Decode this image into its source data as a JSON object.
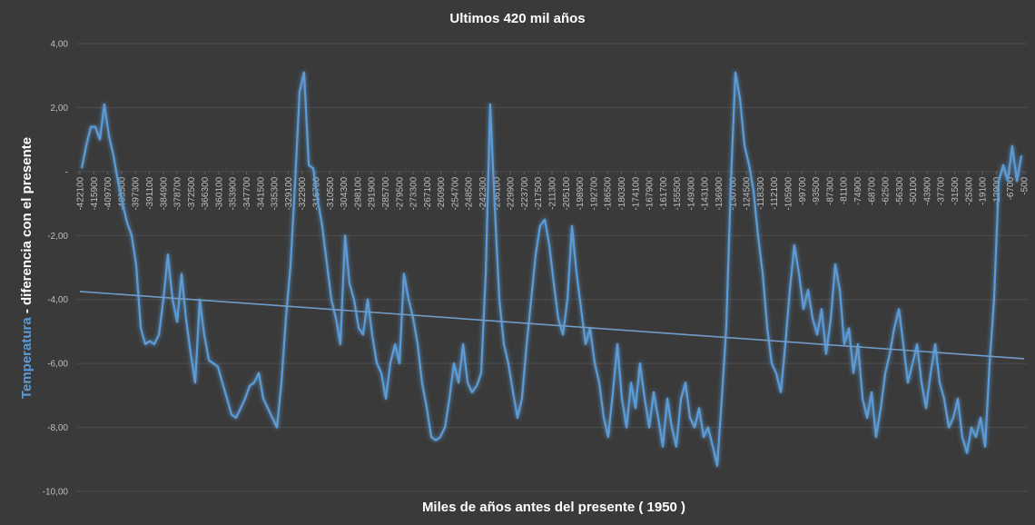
{
  "chart_data": {
    "type": "line",
    "title": "Ultimos 420 mil años",
    "x_label": "Miles de años antes del presente ( 1950 )",
    "y_label_highlight": "Temperatura",
    "y_label_rest": " - diferencia con el presente",
    "color": "#5b9bd5",
    "x": [
      -421300,
      -419300,
      -417200,
      -415200,
      -413200,
      -411200,
      -409100,
      -407100,
      -405100,
      -403000,
      -401000,
      -399000,
      -397000,
      -394900,
      -392900,
      -390900,
      -388900,
      -386800,
      -384800,
      -382800,
      -380700,
      -378700,
      -376700,
      -374700,
      -372600,
      -370600,
      -368600,
      -366600,
      -364500,
      -362500,
      -360500,
      -358500,
      -356400,
      -354400,
      -352400,
      -350300,
      -348300,
      -346300,
      -344300,
      -342200,
      -340200,
      -338200,
      -336200,
      -334100,
      -332100,
      -330100,
      -328000,
      -326000,
      -324000,
      -322000,
      -319900,
      -317900,
      -315900,
      -313900,
      -311800,
      -309800,
      -307800,
      -305800,
      -303700,
      -301700,
      -299700,
      -297600,
      -295600,
      -293600,
      -291600,
      -289500,
      -287500,
      -285500,
      -283500,
      -281400,
      -279400,
      -277400,
      -275300,
      -273300,
      -271300,
      -269300,
      -267200,
      -265200,
      -263200,
      -261200,
      -259100,
      -257100,
      -255100,
      -253000,
      -251000,
      -249000,
      -247000,
      -244900,
      -242900,
      -240900,
      -238900,
      -236800,
      -234800,
      -232800,
      -230800,
      -228700,
      -226700,
      -224700,
      -222600,
      -220600,
      -218600,
      -216600,
      -214500,
      -212500,
      -210500,
      -208500,
      -206400,
      -204400,
      -202400,
      -200300,
      -198300,
      -196300,
      -194300,
      -192200,
      -190200,
      -188200,
      -186200,
      -184100,
      -182100,
      -180100,
      -178000,
      -176000,
      -174000,
      -172000,
      -169900,
      -167900,
      -165900,
      -163900,
      -161800,
      -159800,
      -157800,
      -155800,
      -153700,
      -151700,
      -149700,
      -147600,
      -145600,
      -143600,
      -141600,
      -139500,
      -137500,
      -135500,
      -133500,
      -131400,
      -129400,
      -127400,
      -125300,
      -123300,
      -121300,
      -119300,
      -117200,
      -115200,
      -113200,
      -111200,
      -109100,
      -107100,
      -105100,
      -103100,
      -101000,
      -99000,
      -97000,
      -94900,
      -92900,
      -90900,
      -88900,
      -86800,
      -84800,
      -82800,
      -80800,
      -78700,
      -76700,
      -74700,
      -72600,
      -70600,
      -68600,
      -66600,
      -64500,
      -62500,
      -60500,
      -58500,
      -56400,
      -54400,
      -52400,
      -50300,
      -48300,
      -46300,
      -44300,
      -42200,
      -40200,
      -38200,
      -36200,
      -34100,
      -32100,
      -30100,
      -28100,
      -26000,
      -24000,
      -22000,
      -19900,
      -17900,
      -15900,
      -13900,
      -11800,
      -9800,
      -7800,
      -5800,
      -3700,
      -1700
    ],
    "values": [
      0.1,
      0.8,
      1.4,
      1.4,
      1.0,
      2.1,
      1.1,
      0.5,
      -0.3,
      -1.0,
      -1.6,
      -2.0,
      -2.9,
      -4.9,
      -5.4,
      -5.3,
      -5.4,
      -5.1,
      -4.0,
      -2.6,
      -4.0,
      -4.7,
      -3.2,
      -4.6,
      -5.7,
      -6.6,
      -4.0,
      -5.1,
      -5.9,
      -6.0,
      -6.1,
      -6.6,
      -7.1,
      -7.6,
      -7.7,
      -7.4,
      -7.1,
      -6.7,
      -6.6,
      -6.3,
      -7.1,
      -7.4,
      -7.7,
      -8.0,
      -6.6,
      -4.6,
      -2.9,
      -0.3,
      2.5,
      3.1,
      0.2,
      0.1,
      -0.9,
      -1.7,
      -2.9,
      -4.0,
      -4.6,
      -5.4,
      -2.0,
      -3.5,
      -4.0,
      -4.9,
      -5.1,
      -4.0,
      -5.1,
      -6.0,
      -6.3,
      -7.1,
      -6.0,
      -5.4,
      -6.0,
      -3.2,
      -4.0,
      -4.6,
      -5.4,
      -6.6,
      -7.4,
      -8.3,
      -8.4,
      -8.3,
      -8.0,
      -7.1,
      -6.0,
      -6.6,
      -5.4,
      -6.6,
      -6.9,
      -6.7,
      -6.3,
      -3.2,
      2.1,
      -1.2,
      -4.0,
      -5.4,
      -6.0,
      -6.9,
      -7.7,
      -7.1,
      -5.4,
      -4.0,
      -2.6,
      -1.7,
      -1.5,
      -2.3,
      -3.5,
      -4.6,
      -5.1,
      -4.0,
      -1.7,
      -3.2,
      -4.3,
      -5.4,
      -4.9,
      -6.0,
      -6.6,
      -7.7,
      -8.3,
      -6.9,
      -5.4,
      -7.1,
      -8.0,
      -6.6,
      -7.4,
      -6.0,
      -7.1,
      -8.0,
      -6.9,
      -7.7,
      -8.6,
      -7.1,
      -8.0,
      -8.6,
      -7.1,
      -6.6,
      -7.7,
      -8.0,
      -7.4,
      -8.3,
      -8.0,
      -8.6,
      -9.2,
      -7.1,
      -4.9,
      -0.3,
      3.1,
      2.3,
      0.8,
      0.2,
      -0.6,
      -2.0,
      -3.2,
      -4.9,
      -6.0,
      -6.3,
      -6.9,
      -5.4,
      -3.7,
      -2.3,
      -3.2,
      -4.3,
      -3.7,
      -4.6,
      -5.1,
      -4.3,
      -5.7,
      -4.6,
      -2.9,
      -3.7,
      -5.4,
      -4.9,
      -6.3,
      -5.4,
      -7.1,
      -7.7,
      -6.9,
      -8.3,
      -7.4,
      -6.3,
      -5.7,
      -4.9,
      -4.3,
      -5.4,
      -6.6,
      -6.0,
      -5.4,
      -6.6,
      -7.4,
      -6.3,
      -5.4,
      -6.6,
      -7.1,
      -8.0,
      -7.7,
      -7.1,
      -8.3,
      -8.8,
      -8.0,
      -8.3,
      -7.7,
      -8.6,
      -6.0,
      -4.0,
      -0.3,
      0.2,
      -0.3,
      0.8,
      -0.3,
      0.5
    ],
    "trendline": {
      "x": [
        -422100,
        -500
      ],
      "values": [
        -3.75,
        -5.85
      ],
      "color": "#6f9cc9"
    },
    "xlim": [
      -422100,
      -500
    ],
    "xticks": [
      -422100,
      -415900,
      -409700,
      -403500,
      -397300,
      -391100,
      -384900,
      -378700,
      -372500,
      -366300,
      -360100,
      -353900,
      -347700,
      -341500,
      -335300,
      -329100,
      -322900,
      -316700,
      -310500,
      -304300,
      -298100,
      -291900,
      -285700,
      -279500,
      -273300,
      -267100,
      -260900,
      -254700,
      -248500,
      -242300,
      -236100,
      -229900,
      -223700,
      -217500,
      -211300,
      -205100,
      -198900,
      -192700,
      -186500,
      -180300,
      -174100,
      -167900,
      -161700,
      -155500,
      -149300,
      -143100,
      -136900,
      -130700,
      -124500,
      -118300,
      -112100,
      -105900,
      -99700,
      -93500,
      -87300,
      -81100,
      -74900,
      -68700,
      -62500,
      -56300,
      -50100,
      -43900,
      -37700,
      -31500,
      -25300,
      -19100,
      -12900,
      -6700,
      -500
    ],
    "ylim": [
      -10,
      4
    ],
    "yticks": [
      {
        "value": 4,
        "label": "4,00"
      },
      {
        "value": 2,
        "label": "2,00"
      },
      {
        "value": 0,
        "label": "-"
      },
      {
        "value": -2,
        "label": "-2,00"
      },
      {
        "value": -4,
        "label": "-4,00"
      },
      {
        "value": -6,
        "label": "-6,00"
      },
      {
        "value": -8,
        "label": "-8,00"
      },
      {
        "value": -10,
        "label": "-10,00"
      }
    ],
    "grid": true
  }
}
